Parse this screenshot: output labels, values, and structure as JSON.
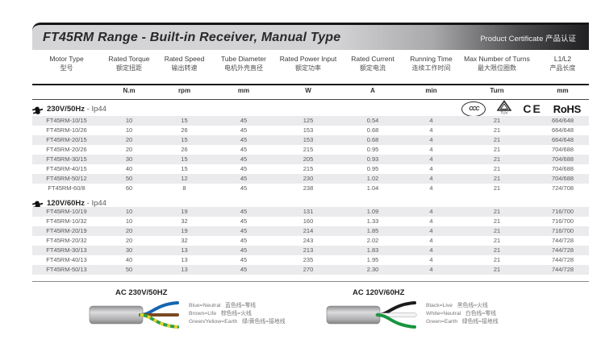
{
  "header": {
    "title": "FT45RM Range - Built-in Receiver, Manual Type",
    "right": "Product Certificate 产品认证"
  },
  "table": {
    "columns": [
      {
        "en": "Motor Type",
        "zh": "型号"
      },
      {
        "en": "Rated Torque",
        "zh": "额定扭距"
      },
      {
        "en": "Rated Speed",
        "zh": "输出转速"
      },
      {
        "en": "Tube Diameter",
        "zh": "电机外壳直径"
      },
      {
        "en": "Rated Power Input",
        "zh": "额定功率"
      },
      {
        "en": "Rated Current",
        "zh": "额定电流"
      },
      {
        "en": "Running Time",
        "zh": "连续工作时间"
      },
      {
        "en": "Max Number of Turns",
        "zh": "最大限位圈数"
      },
      {
        "en": "L1/L2",
        "zh": "产品长度"
      }
    ],
    "units": [
      "",
      "N.m",
      "rpm",
      "mm",
      "W",
      "A",
      "min",
      "Turn",
      "mm"
    ],
    "sections": [
      {
        "label_primary": "230V/50Hz",
        "label_secondary": "- Ip44",
        "certs": [
          {
            "id": "ccc",
            "label": "CCC"
          },
          {
            "id": "tuv",
            "label": "TÜV"
          },
          {
            "id": "ce",
            "label": "CE"
          },
          {
            "id": "rohs",
            "label": "RoHS"
          }
        ],
        "rows": [
          [
            "FT45RM-10/15",
            "10",
            "15",
            "45",
            "125",
            "0.54",
            "4",
            "21",
            "664/648"
          ],
          [
            "FT45RM-10/26",
            "10",
            "26",
            "45",
            "153",
            "0.68",
            "4",
            "21",
            "664/648"
          ],
          [
            "FT45RM-20/15",
            "20",
            "15",
            "45",
            "153",
            "0.68",
            "4",
            "21",
            "664/648"
          ],
          [
            "FT45RM-20/26",
            "20",
            "26",
            "45",
            "215",
            "0.95",
            "4",
            "21",
            "704/688"
          ],
          [
            "FT45RM-30/15",
            "30",
            "15",
            "45",
            "205",
            "0.93",
            "4",
            "21",
            "704/688"
          ],
          [
            "FT45RM-40/15",
            "40",
            "15",
            "45",
            "215",
            "0.95",
            "4",
            "21",
            "704/688"
          ],
          [
            "FT45RM-50/12",
            "50",
            "12",
            "45",
            "230",
            "1.02",
            "4",
            "21",
            "704/688"
          ],
          [
            "FT45RM-60/8",
            "60",
            "8",
            "45",
            "238",
            "1.04",
            "4",
            "21",
            "724/708"
          ]
        ]
      },
      {
        "label_primary": "120V/60Hz",
        "label_secondary": "- Ip44",
        "certs": [],
        "rows": [
          [
            "FT45RM-10/19",
            "10",
            "19",
            "45",
            "131",
            "1.09",
            "4",
            "21",
            "716/700"
          ],
          [
            "FT45RM-10/32",
            "10",
            "32",
            "45",
            "160",
            "1.33",
            "4",
            "21",
            "716/700"
          ],
          [
            "FT45RM-20/19",
            "20",
            "19",
            "45",
            "214",
            "1.85",
            "4",
            "21",
            "716/700"
          ],
          [
            "FT45RM-20/32",
            "20",
            "32",
            "45",
            "243",
            "2.02",
            "4",
            "21",
            "744/728"
          ],
          [
            "FT45RM-30/13",
            "30",
            "13",
            "45",
            "213",
            "1.83",
            "4",
            "21",
            "744/728"
          ],
          [
            "FT45RM-40/13",
            "40",
            "13",
            "45",
            "235",
            "1.95",
            "4",
            "21",
            "744/728"
          ],
          [
            "FT45RM-50/13",
            "50",
            "13",
            "45",
            "270",
            "2.30",
            "4",
            "21",
            "744/728"
          ]
        ]
      }
    ]
  },
  "diagrams": [
    {
      "title": "AC 230V/50HZ",
      "wires": [
        {
          "name": "blue",
          "color": "#1565b0"
        },
        {
          "name": "brown",
          "color": "#7a4a22"
        },
        {
          "name": "green-yellow",
          "color": "#2f9e44",
          "stripe": "#e6d22e"
        }
      ],
      "legend": [
        "Blue=Neutral   蓝色线=零线",
        "Brown=Life   棕色线=火线",
        "Green/Yellow=Earth   绿/黄色线=接地线"
      ]
    },
    {
      "title": "AC 120V/60HZ",
      "wires": [
        {
          "name": "black",
          "color": "#1c1c1e"
        },
        {
          "name": "white",
          "color": "#f4f4f4",
          "outline": "#9a9a9c"
        },
        {
          "name": "green",
          "color": "#18953f"
        }
      ],
      "legend": [
        "Black=Live   黑色线=火线",
        "White=Neutral   白色线=零线",
        "Green=Earth   绿色线=接地线"
      ]
    }
  ],
  "cert_colors": {
    "mark": "#2c2c2e"
  }
}
